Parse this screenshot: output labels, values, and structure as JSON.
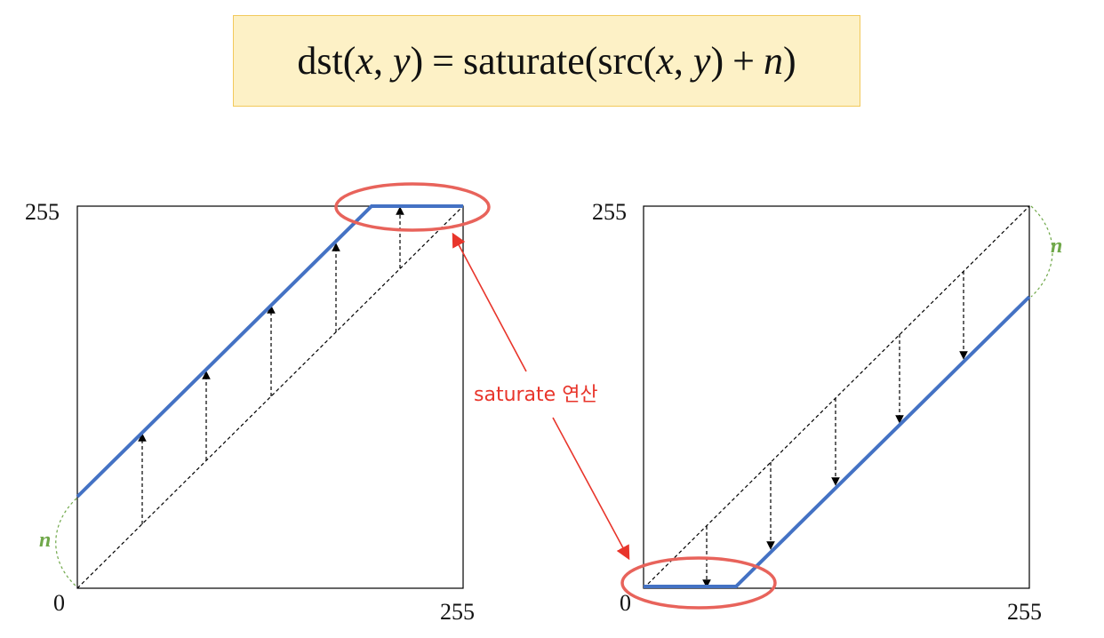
{
  "formula": {
    "lhs_fn": "dst",
    "var_x": "x",
    "var_y": "y",
    "equals": "=",
    "rhs_fn": "saturate",
    "inner_fn": "src",
    "plus": "+",
    "var_n": "n"
  },
  "left_plot": {
    "y_max_label": "255",
    "origin_label": "0",
    "x_max_label": "255",
    "offset_label": "n"
  },
  "right_plot": {
    "y_max_label": "255",
    "origin_label": "0",
    "x_max_label": "255",
    "offset_label": "n"
  },
  "annotation": {
    "saturate_label": "saturate 연산"
  },
  "colors": {
    "curve": "#4472c4",
    "highlight": "#e8635b",
    "arrow_red": "#e8352b",
    "offset_green": "#70a84a",
    "formula_bg": "#fdf1c6"
  }
}
